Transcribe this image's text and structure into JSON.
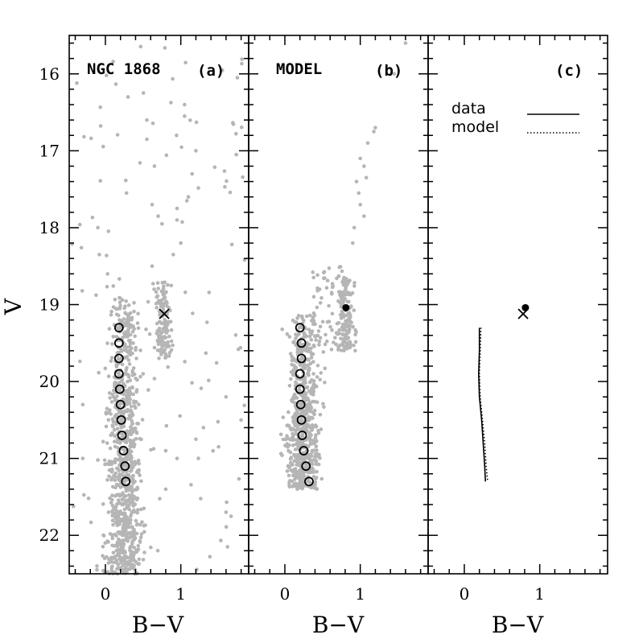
{
  "chart_data": {
    "type": "scatter",
    "ylabel": "V",
    "xlim": [
      -0.48,
      1.9
    ],
    "ylim": [
      22.5,
      15.5
    ],
    "y_ticks": [
      16,
      17,
      18,
      19,
      20,
      21,
      22
    ],
    "x_ticks": [
      0,
      1
    ],
    "panels": [
      {
        "id": "a",
        "title": "NGC 1868",
        "label": "(a)",
        "xlabel": "B−V",
        "point_color": "#b5b5b5",
        "ridge_line": {
          "marker": "open-circle",
          "points": [
            [
              0.18,
              19.3
            ],
            [
              0.18,
              19.5
            ],
            [
              0.18,
              19.7
            ],
            [
              0.18,
              19.9
            ],
            [
              0.19,
              20.1
            ],
            [
              0.2,
              20.3
            ],
            [
              0.21,
              20.5
            ],
            [
              0.22,
              20.7
            ],
            [
              0.24,
              20.9
            ],
            [
              0.26,
              21.1
            ],
            [
              0.27,
              21.3
            ]
          ]
        },
        "clump": {
          "marker": "cross",
          "x": 0.78,
          "y": 19.12
        },
        "sequences": [
          {
            "kind": "main-sequence",
            "x_center": 0.25,
            "x_width": 0.09,
            "y_range": [
              18.9,
              22.5
            ],
            "count": 900,
            "seed": 11
          },
          {
            "kind": "red-clump",
            "x_center": 0.76,
            "x_width": 0.06,
            "y_range": [
              18.7,
              19.7
            ],
            "count": 130,
            "seed": 12
          },
          {
            "kind": "field",
            "x_range": [
              -0.45,
              1.85
            ],
            "y_range": [
              15.6,
              22.5
            ],
            "count": 110,
            "seed": 13
          }
        ],
        "points": [
          [
            0.3,
            16.3
          ],
          [
            0.55,
            16.6
          ],
          [
            0.55,
            16.85
          ],
          [
            1.05,
            16.4
          ],
          [
            1.05,
            16.55
          ],
          [
            1.2,
            17.0
          ],
          [
            1.15,
            17.3
          ],
          [
            1.1,
            17.6
          ],
          [
            1.08,
            17.65
          ],
          [
            0.65,
            17.2
          ],
          [
            0.62,
            17.7
          ],
          [
            0.7,
            17.85
          ],
          [
            0.75,
            17.95
          ],
          [
            0.95,
            17.75
          ],
          [
            0.95,
            17.9
          ],
          [
            1.0,
            18.2
          ],
          [
            0.9,
            18.35
          ],
          [
            0.28,
            17.55
          ],
          [
            -0.1,
            18.0
          ],
          [
            -0.08,
            18.35
          ],
          [
            0.62,
            18.5
          ],
          [
            1.75,
            16.05
          ],
          [
            1.6,
            20.2
          ],
          [
            1.8,
            20.5
          ],
          [
            1.2,
            20.75
          ],
          [
            1.3,
            20.6
          ],
          [
            1.6,
            21.7
          ],
          [
            0.95,
            21.0
          ],
          [
            0.8,
            20.9
          ],
          [
            0.8,
            21.4
          ],
          [
            -0.3,
            20.3
          ],
          [
            -0.3,
            21.0
          ],
          [
            0.5,
            19.9
          ]
        ]
      },
      {
        "id": "b",
        "title": "MODEL",
        "label": "(b)",
        "xlabel": "B−V",
        "point_color": "#b5b5b5",
        "ridge_line": {
          "marker": "open-circle",
          "points": [
            [
              0.2,
              19.3
            ],
            [
              0.22,
              19.5
            ],
            [
              0.22,
              19.7
            ],
            [
              0.2,
              19.9
            ],
            [
              0.2,
              20.1
            ],
            [
              0.21,
              20.3
            ],
            [
              0.22,
              20.5
            ],
            [
              0.23,
              20.7
            ],
            [
              0.25,
              20.9
            ],
            [
              0.28,
              21.1
            ],
            [
              0.32,
              21.3
            ]
          ]
        },
        "clump": {
          "marker": "filled-circle",
          "x": 0.81,
          "y": 19.04
        },
        "sequences": [
          {
            "kind": "main-sequence",
            "x_center": 0.25,
            "x_width": 0.09,
            "y_range": [
              19.1,
              21.4
            ],
            "count": 650,
            "seed": 21
          },
          {
            "kind": "subgiant",
            "x_range": [
              0.35,
              0.8
            ],
            "y_range": [
              18.5,
              19.6
            ],
            "count": 70,
            "seed": 22
          },
          {
            "kind": "red-clump",
            "x_center": 0.82,
            "x_width": 0.05,
            "y_range": [
              18.6,
              19.6
            ],
            "count": 140,
            "seed": 23
          }
        ],
        "points": [
          [
            1.2,
            16.7
          ],
          [
            1.18,
            16.75
          ],
          [
            1.1,
            16.9
          ],
          [
            1.0,
            17.1
          ],
          [
            1.05,
            17.2
          ],
          [
            1.08,
            17.35
          ],
          [
            0.95,
            17.4
          ],
          [
            0.98,
            17.55
          ],
          [
            1.0,
            17.7
          ],
          [
            1.05,
            17.85
          ],
          [
            0.92,
            18.0
          ],
          [
            0.9,
            18.2
          ],
          [
            1.45,
            16.0
          ],
          [
            1.6,
            15.6
          ]
        ]
      },
      {
        "id": "c",
        "title": "",
        "label": "(c)",
        "xlabel": "B−V",
        "legend": [
          {
            "label": "data",
            "style": "solid"
          },
          {
            "label": "model",
            "style": "dotted"
          }
        ],
        "series": [
          {
            "style": "solid",
            "points": [
              [
                0.2,
                19.3
              ],
              [
                0.2,
                19.6
              ],
              [
                0.19,
                19.9
              ],
              [
                0.2,
                20.2
              ],
              [
                0.23,
                20.5
              ],
              [
                0.25,
                20.8
              ],
              [
                0.27,
                21.1
              ],
              [
                0.28,
                21.3
              ]
            ]
          },
          {
            "style": "dotted",
            "points": [
              [
                0.22,
                19.3
              ],
              [
                0.21,
                19.6
              ],
              [
                0.2,
                19.9
              ],
              [
                0.21,
                20.2
              ],
              [
                0.24,
                20.5
              ],
              [
                0.27,
                20.8
              ],
              [
                0.29,
                21.1
              ],
              [
                0.31,
                21.3
              ]
            ]
          }
        ],
        "clump_model": {
          "marker": "filled-circle",
          "x": 0.81,
          "y": 19.04
        },
        "clump_data": {
          "marker": "cross",
          "x": 0.78,
          "y": 19.12
        }
      }
    ]
  }
}
